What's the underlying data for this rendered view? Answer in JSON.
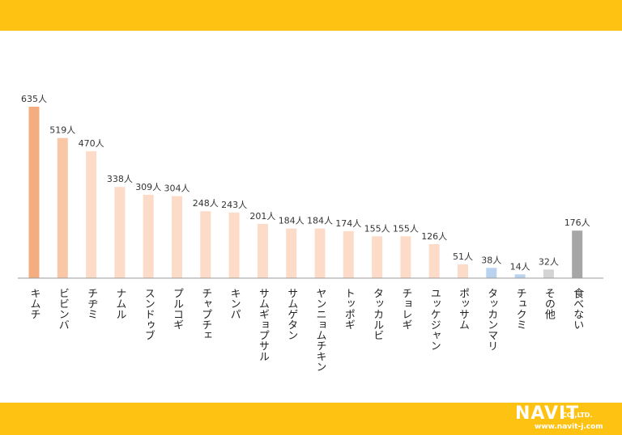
{
  "branding": {
    "logo_main": "NAVIT",
    "logo_suffix": "CO.,LTD.",
    "logo_url": "www.navit-j.com",
    "band_color": "#fec213"
  },
  "chart_data": {
    "type": "bar",
    "categories": [
      "キムチ",
      "ビビンバ",
      "チヂミ",
      "ナムル",
      "スンドゥブ",
      "プルコギ",
      "チャプチェ",
      "キンパ",
      "サムギョプサル",
      "サムゲタン",
      "ヤンニョムチキン",
      "トッポギ",
      "タッカルビ",
      "チョレギ",
      "ユッケジャン",
      "ポッサム",
      "タッカンマリ",
      "チュクミ",
      "その他",
      "食べない"
    ],
    "values": [
      635,
      519,
      470,
      338,
      309,
      304,
      248,
      243,
      201,
      184,
      184,
      174,
      155,
      155,
      126,
      51,
      38,
      14,
      32,
      176
    ],
    "value_labels": [
      "635人",
      "519人",
      "470人",
      "338人",
      "309人",
      "304人",
      "248人",
      "243人",
      "201人",
      "184人",
      "184人",
      "174人",
      "155人",
      "155人",
      "126人",
      "51人",
      "38人",
      "14人",
      "32人",
      "176人"
    ],
    "colors": [
      "#f4ad7e",
      "#f8c8a6",
      "#fcdcc8",
      "#fcdcc8",
      "#fcdcc8",
      "#fcdcc8",
      "#fcdcc8",
      "#fcdcc8",
      "#fcdcc8",
      "#fcdcc8",
      "#fcdcc8",
      "#fcdcc8",
      "#fcdcc8",
      "#fcdcc8",
      "#fcdcc8",
      "#fcdcc8",
      "#b9d3ee",
      "#b9d3ee",
      "#d4d4d4",
      "#a6a6a6"
    ],
    "ylim": [
      0,
      635
    ],
    "grid": false,
    "title": "",
    "xlabel": "",
    "ylabel": ""
  }
}
